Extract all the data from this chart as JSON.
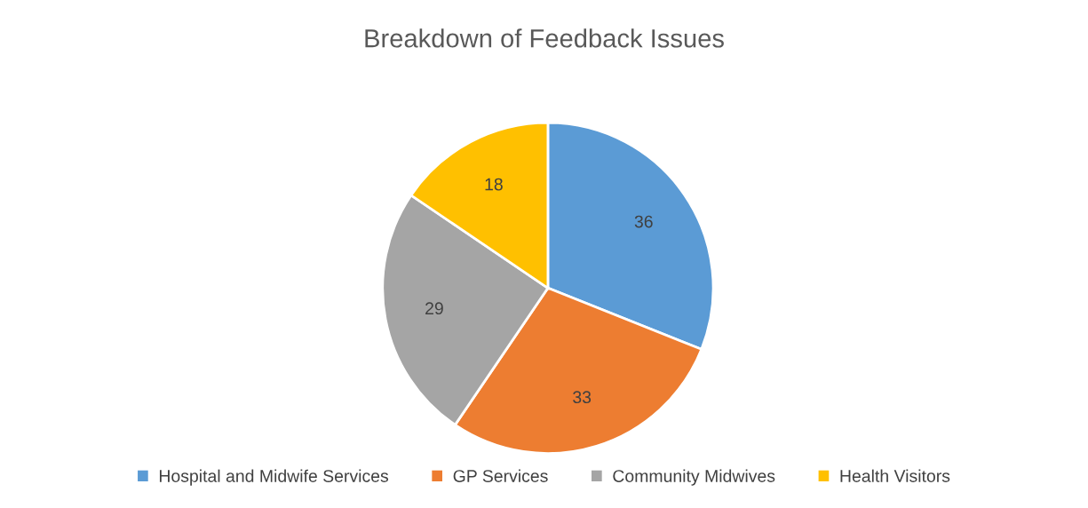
{
  "chart_data": {
    "type": "pie",
    "title": "Breakdown of Feedback Issues",
    "categories": [
      "Hospital and Midwife Services",
      "GP Services",
      "Community Midwives",
      "Health Visitors"
    ],
    "values": [
      36,
      33,
      29,
      18
    ],
    "colors": [
      "#5b9bd5",
      "#ed7d31",
      "#a5a5a5",
      "#ffc000"
    ],
    "data_labels": true,
    "legend": "bottom"
  }
}
